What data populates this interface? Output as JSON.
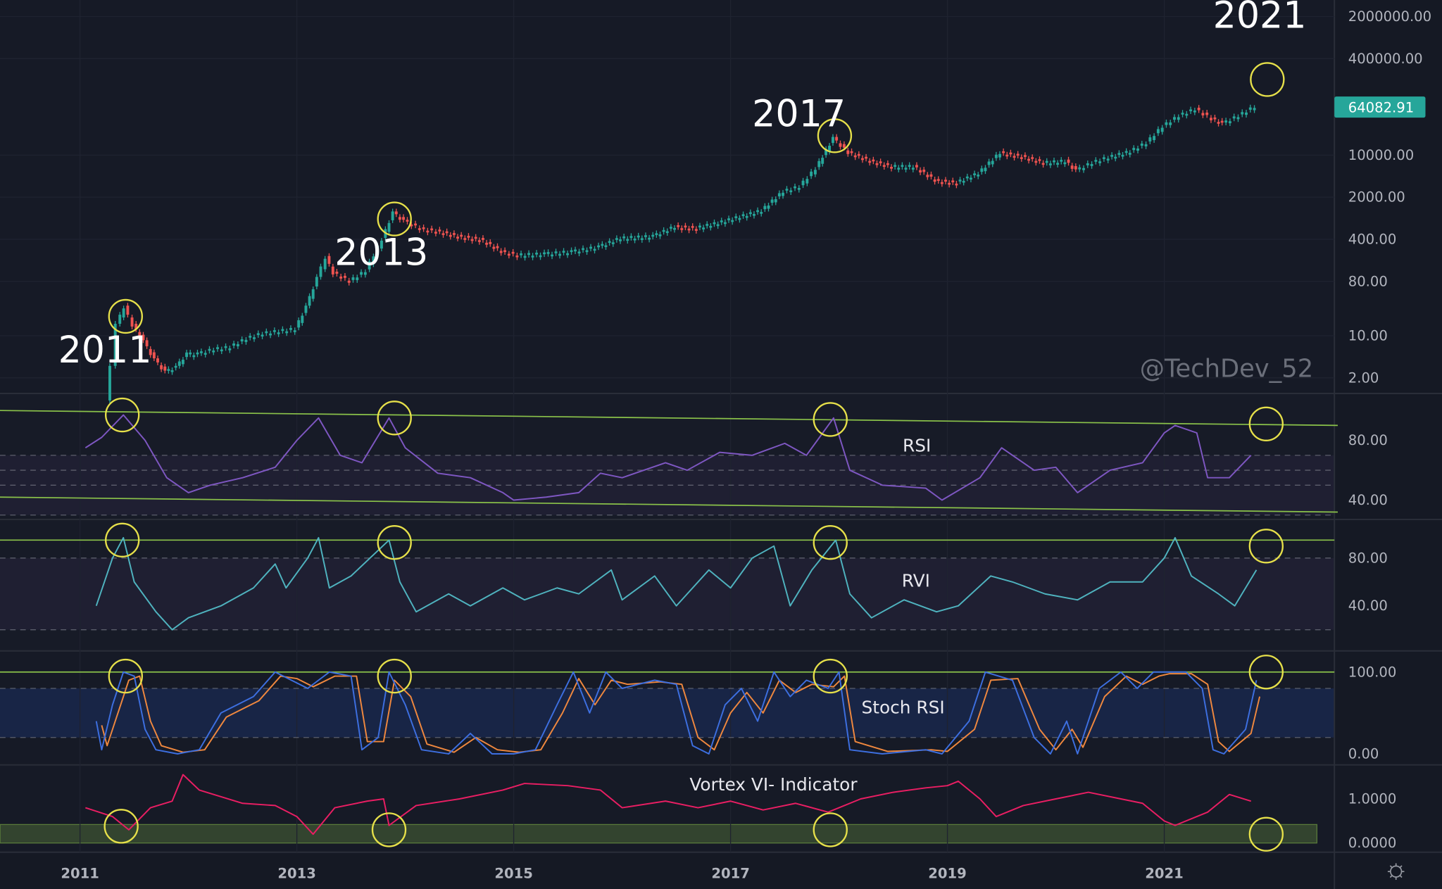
{
  "chart_data": [
    {
      "type": "candlestick",
      "panel": "price",
      "yscale": "log",
      "y_ticks": [
        "2000000.00",
        "400000.00",
        "10000.00",
        "2000.00",
        "400.00",
        "80.00",
        "10.00",
        "2.00"
      ],
      "y_tick_values": [
        2000000,
        400000,
        10000,
        2000,
        400,
        80,
        10,
        2
      ],
      "last_price_label": "64082.91",
      "x_ticks": [
        "2011",
        "2013",
        "2015",
        "2017",
        "2019",
        "2021"
      ],
      "x_tick_values": [
        2011,
        2013,
        2015,
        2017,
        2019,
        2021
      ],
      "x": [
        2011.25,
        2011.3,
        2011.35,
        2011.42,
        2011.5,
        2011.6,
        2011.7,
        2011.8,
        2011.9,
        2012.0,
        2012.1,
        2012.25,
        2012.4,
        2012.55,
        2012.7,
        2012.85,
        2013.0,
        2013.1,
        2013.2,
        2013.28,
        2013.35,
        2013.5,
        2013.65,
        2013.8,
        2013.9,
        2014.0,
        2014.15,
        2014.3,
        2014.5,
        2014.7,
        2014.9,
        2015.05,
        2015.3,
        2015.55,
        2015.8,
        2016.0,
        2016.3,
        2016.5,
        2016.7,
        2016.9,
        2017.1,
        2017.3,
        2017.5,
        2017.65,
        2017.8,
        2017.96,
        2018.1,
        2018.3,
        2018.5,
        2018.7,
        2018.9,
        2019.1,
        2019.3,
        2019.5,
        2019.7,
        2019.9,
        2020.1,
        2020.2,
        2020.35,
        2020.5,
        2020.7,
        2020.85,
        2021.0,
        2021.15,
        2021.3,
        2021.45,
        2021.55,
        2021.7,
        2021.85
      ],
      "values": [
        0.8,
        3,
        15,
        30,
        15,
        8,
        4,
        2.5,
        3,
        5,
        5,
        6,
        6.5,
        9,
        11,
        12,
        13,
        30,
        90,
        200,
        110,
        80,
        120,
        400,
        1100,
        800,
        600,
        550,
        450,
        400,
        250,
        220,
        230,
        250,
        300,
        420,
        450,
        650,
        620,
        750,
        950,
        1200,
        2500,
        3000,
        6000,
        19000,
        11000,
        8000,
        6500,
        6500,
        3800,
        3500,
        5000,
        11000,
        9500,
        7500,
        8000,
        5500,
        7500,
        9200,
        11500,
        16000,
        30000,
        45000,
        58000,
        40000,
        33000,
        45000,
        64082.91
      ],
      "circles": [
        {
          "x": 2011.42,
          "y": 21
        },
        {
          "x": 2013.9,
          "y": 870
        },
        {
          "x": 2017.96,
          "y": 21000
        },
        {
          "x": 2021.95,
          "y": 180000
        }
      ],
      "annotations": [
        {
          "text": "2011",
          "x": 2011.23,
          "y": 3.6
        },
        {
          "text": "2013",
          "x": 2013.78,
          "y": 150
        },
        {
          "text": "2017",
          "x": 2017.63,
          "y": 30000
        },
        {
          "text": "2021",
          "x": 2021.88,
          "y": 1300000
        }
      ],
      "watermark": "@TechDev_52",
      "colors": {
        "up": "#26a69a",
        "down": "#ef5350",
        "circle": "#e6e04a",
        "label_bg": "#26a69a"
      }
    },
    {
      "type": "line",
      "panel": "RSI",
      "title": "RSI",
      "y_ticks": [
        "80.00",
        "40.00"
      ],
      "y_tick_values": [
        80,
        40
      ],
      "dashed_levels": [
        70,
        60,
        50,
        30
      ],
      "trendlines": [
        [
          [
            2010.26,
            100
          ],
          [
            2022.6,
            90
          ]
        ],
        [
          [
            2010.26,
            42
          ],
          [
            2022.6,
            32
          ]
        ]
      ],
      "x": [
        2011.05,
        2011.2,
        2011.4,
        2011.6,
        2011.8,
        2012.0,
        2012.2,
        2012.5,
        2012.8,
        2013.0,
        2013.2,
        2013.4,
        2013.6,
        2013.85,
        2014.0,
        2014.3,
        2014.6,
        2014.9,
        2015.0,
        2015.3,
        2015.6,
        2015.8,
        2016.0,
        2016.4,
        2016.6,
        2016.9,
        2017.2,
        2017.5,
        2017.7,
        2017.95,
        2018.1,
        2018.4,
        2018.8,
        2018.95,
        2019.3,
        2019.5,
        2019.8,
        2020.0,
        2020.2,
        2020.5,
        2020.8,
        2021.0,
        2021.1,
        2021.3,
        2021.4,
        2021.6,
        2021.8
      ],
      "values": [
        75,
        82,
        97,
        80,
        55,
        45,
        50,
        55,
        62,
        80,
        95,
        70,
        65,
        95,
        75,
        58,
        55,
        45,
        40,
        42,
        45,
        58,
        55,
        65,
        60,
        72,
        70,
        78,
        70,
        95,
        60,
        50,
        48,
        40,
        55,
        75,
        60,
        62,
        45,
        60,
        65,
        85,
        90,
        85,
        55,
        55,
        70
      ],
      "circles": [
        {
          "x": 2011.39,
          "y": 97
        },
        {
          "x": 2013.9,
          "y": 95
        },
        {
          "x": 2017.92,
          "y": 94
        },
        {
          "x": 2021.94,
          "y": 91
        }
      ],
      "colors": {
        "line": "#7e57c2",
        "band": "#7e57c2",
        "trend": "#8bc34a"
      }
    },
    {
      "type": "line",
      "panel": "RVI",
      "title": "RVI",
      "y_ticks": [
        "80.00",
        "40.00"
      ],
      "y_tick_values": [
        80,
        40
      ],
      "dashed_levels": [
        80,
        20
      ],
      "level_line": 95,
      "x": [
        2011.15,
        2011.3,
        2011.4,
        2011.5,
        2011.7,
        2011.85,
        2012.0,
        2012.3,
        2012.6,
        2012.8,
        2012.9,
        2013.1,
        2013.2,
        2013.3,
        2013.5,
        2013.85,
        2013.95,
        2014.1,
        2014.4,
        2014.6,
        2014.9,
        2015.1,
        2015.4,
        2015.6,
        2015.9,
        2016.0,
        2016.3,
        2016.5,
        2016.8,
        2017.0,
        2017.2,
        2017.4,
        2017.55,
        2017.75,
        2017.97,
        2018.1,
        2018.3,
        2018.6,
        2018.9,
        2019.1,
        2019.4,
        2019.6,
        2019.9,
        2020.2,
        2020.5,
        2020.8,
        2021.0,
        2021.1,
        2021.25,
        2021.5,
        2021.65,
        2021.85
      ],
      "values": [
        40,
        80,
        97,
        60,
        35,
        20,
        30,
        40,
        55,
        75,
        55,
        80,
        97,
        55,
        65,
        95,
        60,
        35,
        50,
        40,
        55,
        45,
        55,
        50,
        70,
        45,
        65,
        40,
        70,
        55,
        80,
        90,
        40,
        70,
        95,
        50,
        30,
        45,
        35,
        40,
        65,
        60,
        50,
        45,
        60,
        60,
        80,
        97,
        65,
        50,
        40,
        70
      ],
      "circles": [
        {
          "x": 2011.39,
          "y": 95
        },
        {
          "x": 2013.9,
          "y": 93
        },
        {
          "x": 2017.92,
          "y": 93
        },
        {
          "x": 2021.94,
          "y": 90
        }
      ],
      "colors": {
        "line": "#4fb3bf",
        "band": "#7e57c2",
        "level": "#8bc34a"
      }
    },
    {
      "type": "line",
      "panel": "Stoch RSI",
      "title": "Stoch RSI",
      "y_ticks": [
        "100.00",
        "0.00"
      ],
      "y_tick_values": [
        100,
        0
      ],
      "dashed_levels": [
        80,
        20
      ],
      "level_line": 100,
      "series": [
        {
          "x": [
            2011.15,
            2011.2,
            2011.3,
            2011.4,
            2011.5,
            2011.6,
            2011.7,
            2011.9,
            2012.1,
            2012.3,
            2012.6,
            2012.8,
            2012.95,
            2013.1,
            2013.3,
            2013.5,
            2013.6,
            2013.75,
            2013.85,
            2014.0,
            2014.15,
            2014.4,
            2014.6,
            2014.8,
            2015.0,
            2015.2,
            2015.4,
            2015.55,
            2015.7,
            2015.85,
            2016.0,
            2016.3,
            2016.5,
            2016.65,
            2016.8,
            2016.95,
            2017.1,
            2017.25,
            2017.4,
            2017.55,
            2017.7,
            2017.9,
            2018.0,
            2018.1,
            2018.4,
            2018.8,
            2018.95,
            2019.2,
            2019.35,
            2019.6,
            2019.8,
            2019.95,
            2020.1,
            2020.2,
            2020.4,
            2020.6,
            2020.75,
            2020.9,
            2021.0,
            2021.2,
            2021.35,
            2021.45,
            2021.55,
            2021.75,
            2021.85
          ],
          "values": [
            40,
            5,
            60,
            100,
            95,
            30,
            5,
            0,
            5,
            50,
            70,
            100,
            90,
            80,
            100,
            95,
            5,
            20,
            100,
            60,
            5,
            0,
            25,
            0,
            0,
            5,
            60,
            100,
            50,
            100,
            80,
            90,
            85,
            10,
            0,
            60,
            80,
            40,
            100,
            70,
            90,
            80,
            100,
            5,
            0,
            5,
            0,
            40,
            100,
            90,
            20,
            0,
            40,
            0,
            80,
            100,
            80,
            100,
            100,
            100,
            80,
            5,
            0,
            30,
            90
          ]
        },
        {
          "x": [
            2011.2,
            2011.25,
            2011.35,
            2011.45,
            2011.55,
            2011.65,
            2011.75,
            2011.95,
            2012.15,
            2012.35,
            2012.65,
            2012.85,
            2013.0,
            2013.15,
            2013.35,
            2013.55,
            2013.65,
            2013.8,
            2013.9,
            2014.05,
            2014.2,
            2014.45,
            2014.65,
            2014.85,
            2015.05,
            2015.25,
            2015.45,
            2015.6,
            2015.75,
            2015.9,
            2016.05,
            2016.35,
            2016.55,
            2016.7,
            2016.85,
            2017.0,
            2017.15,
            2017.3,
            2017.45,
            2017.6,
            2017.75,
            2017.95,
            2018.05,
            2018.15,
            2018.45,
            2018.85,
            2019.0,
            2019.25,
            2019.4,
            2019.65,
            2019.85,
            2020.0,
            2020.15,
            2020.25,
            2020.45,
            2020.65,
            2020.8,
            2020.95,
            2021.05,
            2021.25,
            2021.4,
            2021.5,
            2021.6,
            2021.8,
            2021.88
          ],
          "values": [
            35,
            10,
            50,
            90,
            95,
            40,
            10,
            2,
            5,
            45,
            65,
            95,
            92,
            82,
            95,
            95,
            15,
            15,
            90,
            70,
            12,
            2,
            20,
            5,
            2,
            5,
            50,
            92,
            60,
            90,
            85,
            88,
            85,
            20,
            5,
            50,
            75,
            50,
            90,
            75,
            85,
            82,
            95,
            15,
            3,
            5,
            3,
            30,
            90,
            92,
            30,
            5,
            30,
            8,
            70,
            95,
            85,
            95,
            98,
            98,
            85,
            15,
            3,
            25,
            70
          ]
        }
      ],
      "circles": [
        {
          "x": 2011.42,
          "y": 95
        },
        {
          "x": 2013.9,
          "y": 95
        },
        {
          "x": 2017.92,
          "y": 95
        },
        {
          "x": 2021.94,
          "y": 100
        }
      ],
      "colors": {
        "k": "#3d6fe0",
        "d": "#f0883e",
        "band": "#2962ff",
        "level": "#8bc34a"
      }
    },
    {
      "type": "line",
      "panel": "Vortex",
      "title": "Vortex VI- Indicator",
      "y_ticks": [
        "1.0000",
        "0.0000"
      ],
      "y_tick_values": [
        1,
        0
      ],
      "band": [
        0,
        0.42
      ],
      "x": [
        2011.05,
        2011.3,
        2011.45,
        2011.65,
        2011.85,
        2011.95,
        2012.1,
        2012.5,
        2012.8,
        2013.0,
        2013.15,
        2013.35,
        2013.65,
        2013.8,
        2013.85,
        2014.1,
        2014.5,
        2014.9,
        2015.1,
        2015.5,
        2015.8,
        2016.0,
        2016.4,
        2016.7,
        2017.0,
        2017.3,
        2017.6,
        2017.9,
        2018.2,
        2018.5,
        2018.8,
        2019.0,
        2019.1,
        2019.3,
        2019.45,
        2019.7,
        2020.0,
        2020.3,
        2020.6,
        2020.8,
        2021.0,
        2021.1,
        2021.4,
        2021.6,
        2021.8
      ],
      "values": [
        0.8,
        0.6,
        0.3,
        0.8,
        0.95,
        1.55,
        1.2,
        0.9,
        0.85,
        0.6,
        0.2,
        0.8,
        0.95,
        1.0,
        0.4,
        0.85,
        1.0,
        1.2,
        1.35,
        1.3,
        1.2,
        0.8,
        0.95,
        0.8,
        0.95,
        0.75,
        0.9,
        0.7,
        1.0,
        1.15,
        1.25,
        1.3,
        1.4,
        1.0,
        0.6,
        0.85,
        1.0,
        1.15,
        1.0,
        0.9,
        0.5,
        0.4,
        0.7,
        1.1,
        0.95
      ],
      "circles": [
        {
          "x": 2011.38,
          "y": 0.38
        },
        {
          "x": 2013.85,
          "y": 0.3
        },
        {
          "x": 2017.92,
          "y": 0.3
        },
        {
          "x": 2021.94,
          "y": 0.2
        }
      ],
      "colors": {
        "line": "#e91e63",
        "band": "#8bc34a"
      }
    }
  ]
}
